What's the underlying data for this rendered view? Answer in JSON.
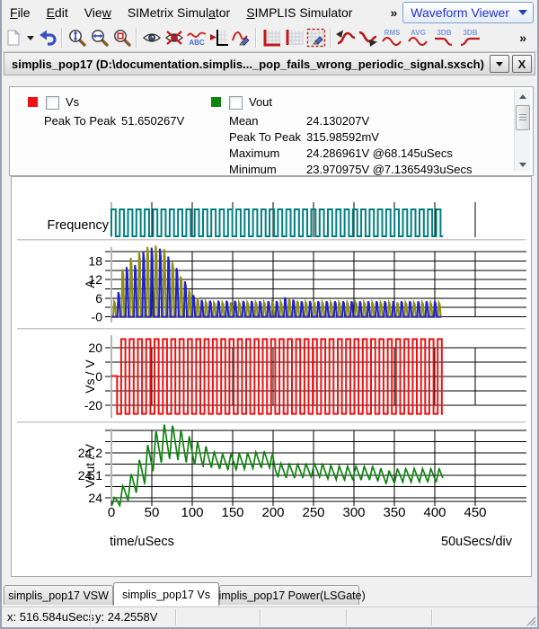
{
  "menu": {
    "items": [
      {
        "pre": "",
        "key": "F",
        "post": "ile"
      },
      {
        "pre": "",
        "key": "E",
        "post": "dit"
      },
      {
        "pre": "Vie",
        "key": "w",
        "post": ""
      },
      {
        "pre": "SIMetrix Simul",
        "key": "a",
        "post": "tor"
      },
      {
        "pre": "",
        "key": "S",
        "post": "IMPLIS Simulator"
      }
    ],
    "overflow": "»",
    "mode_selector": "Waveform Viewer"
  },
  "toolbar": {
    "overflow": "»",
    "icon_texts": {
      "abc": "ABC",
      "rms": "RMS",
      "avg": "AVG",
      "db3_low": "3DB",
      "db3_high": "3DB"
    }
  },
  "icons": {
    "close": "X"
  },
  "graph_window": {
    "title": "simplis_pop17 (D:\\documentation.simplis..._pop_fails_wrong_periodic_signal.sxsch)"
  },
  "legend": {
    "curves": [
      {
        "name": "Vs",
        "color": "#ee1111",
        "stats": [
          {
            "label": "Peak To Peak",
            "value": "51.650267V"
          }
        ]
      },
      {
        "name": "Vout",
        "color": "#0e830e",
        "stats": [
          {
            "label": "Mean",
            "value": "24.130207V"
          },
          {
            "label": "Peak To Peak",
            "value": "315.98592mV"
          },
          {
            "label": "Maximum",
            "value": "24.286961V @68.145uSecs"
          },
          {
            "label": "Minimum",
            "value": "23.970975V @7.1365493uSecs"
          }
        ]
      }
    ]
  },
  "tabs": [
    {
      "label": "simplis_pop17 VSW",
      "active": false
    },
    {
      "label": "simplis_pop17 Vs",
      "active": true
    },
    {
      "label": "simplis_pop17 Power(LSGate)",
      "active": false
    }
  ],
  "status": {
    "x": "x: 516.584uSecs",
    "y": "y: 24.2558V"
  },
  "chart_data": {
    "type": "line",
    "x_axis": {
      "label": "time/uSecs",
      "div_label": "50uSecs/div",
      "ticks": [
        0,
        50,
        100,
        150,
        200,
        250,
        300,
        350,
        400,
        450
      ],
      "range_us": [
        0,
        513
      ],
      "grid_step_us": 50
    },
    "panels": [
      {
        "id": "frequency",
        "label": "Frequency",
        "type": "digital",
        "color": "#007f7f",
        "period_us": 10.3,
        "duty": 0.52,
        "t_start": 0,
        "t_end": 410
      },
      {
        "id": "A",
        "ylabel": "A",
        "type": "spikes",
        "ymin": -0.7,
        "ymax": 21.9,
        "grid_step": 3,
        "ytick_values": [
          18,
          12,
          6,
          0
        ],
        "ytick_labels": [
          "18",
          "12",
          "6",
          "-0"
        ],
        "series": [
          {
            "name": "spike-olive",
            "color": "#8f8f10",
            "period_us": 10.3,
            "offset_us": 4.6,
            "peak_envelope": [
              [
                0,
                0
              ],
              [
                14,
                15
              ],
              [
                25,
                19
              ],
              [
                35,
                21
              ],
              [
                45,
                22.5
              ],
              [
                57,
                23
              ],
              [
                66,
                22
              ],
              [
                76,
                18
              ],
              [
                86,
                13.5
              ],
              [
                96,
                9
              ],
              [
                106,
                6.2
              ],
              [
                116,
                5
              ],
              [
                126,
                4.6
              ],
              [
                210,
                4.8
              ],
              [
                222,
                6
              ],
              [
                235,
                4.8
              ],
              [
                410,
                4.6
              ]
            ]
          },
          {
            "name": "spike-blue",
            "color": "#2222cc",
            "period_us": 10.3,
            "offset_us": 9.8,
            "peak_envelope": [
              [
                0,
                8
              ],
              [
                10,
                8
              ],
              [
                20,
                16
              ],
              [
                30,
                16.5
              ],
              [
                40,
                21
              ],
              [
                50,
                22.3
              ],
              [
                60,
                22.3
              ],
              [
                70,
                20
              ],
              [
                80,
                16.5
              ],
              [
                90,
                12.5
              ],
              [
                100,
                7.5
              ],
              [
                110,
                5.5
              ],
              [
                120,
                5.2
              ],
              [
                205,
                5
              ],
              [
                218,
                6.5
              ],
              [
                230,
                5
              ],
              [
                410,
                5
              ]
            ]
          }
        ]
      },
      {
        "id": "Vs",
        "ylabel": "Vs / V",
        "type": "square",
        "color": "#ee1111",
        "ymin": -27.5,
        "ymax": 27.5,
        "grid_step": 10,
        "ytick_values": [
          20,
          0,
          -20
        ],
        "ytick_labels": [
          "20",
          "0",
          "-20"
        ],
        "amplitude": 26,
        "period_us": 10.3,
        "start_hold_us": 7,
        "t_end": 410
      },
      {
        "id": "Vout",
        "ylabel": "Vout / V",
        "type": "ripple",
        "color": "#0e830e",
        "ymin": 23.984,
        "ymax": 24.3,
        "grid_step": 0.05,
        "ytick_values": [
          24.2,
          24.1,
          24
        ],
        "ytick_labels": [
          "24.2",
          "24.1",
          "24"
        ],
        "period_us": 10.3,
        "t_end": 410,
        "center_envelope": [
          [
            0,
            23.975
          ],
          [
            8,
            23.99
          ],
          [
            16,
            24.02
          ],
          [
            24,
            24.05
          ],
          [
            32,
            24.09
          ],
          [
            40,
            24.13
          ],
          [
            48,
            24.18
          ],
          [
            56,
            24.22
          ],
          [
            64,
            24.245
          ],
          [
            72,
            24.25
          ],
          [
            80,
            24.245
          ],
          [
            88,
            24.23
          ],
          [
            96,
            24.215
          ],
          [
            104,
            24.2
          ],
          [
            112,
            24.19
          ],
          [
            120,
            24.18
          ],
          [
            130,
            24.165
          ],
          [
            140,
            24.16
          ],
          [
            155,
            24.16
          ],
          [
            170,
            24.165
          ],
          [
            185,
            24.17
          ],
          [
            198,
            24.17
          ],
          [
            203,
            24.125
          ],
          [
            215,
            24.12
          ],
          [
            235,
            24.12
          ],
          [
            255,
            24.125
          ],
          [
            268,
            24.115
          ],
          [
            285,
            24.11
          ],
          [
            305,
            24.11
          ],
          [
            325,
            24.11
          ],
          [
            338,
            24.095
          ],
          [
            345,
            24.09
          ],
          [
            355,
            24.1
          ],
          [
            375,
            24.1
          ],
          [
            410,
            24.1
          ]
        ],
        "ripple_envelope": [
          [
            0,
            0.012
          ],
          [
            8,
            0.03
          ],
          [
            16,
            0.045
          ],
          [
            24,
            0.055
          ],
          [
            32,
            0.065
          ],
          [
            40,
            0.075
          ],
          [
            48,
            0.08
          ],
          [
            56,
            0.085
          ],
          [
            64,
            0.085
          ],
          [
            72,
            0.08
          ],
          [
            80,
            0.075
          ],
          [
            88,
            0.07
          ],
          [
            96,
            0.06
          ],
          [
            104,
            0.055
          ],
          [
            112,
            0.05
          ],
          [
            120,
            0.045
          ],
          [
            130,
            0.035
          ],
          [
            198,
            0.038
          ],
          [
            205,
            0.032
          ],
          [
            410,
            0.03
          ]
        ]
      }
    ]
  }
}
